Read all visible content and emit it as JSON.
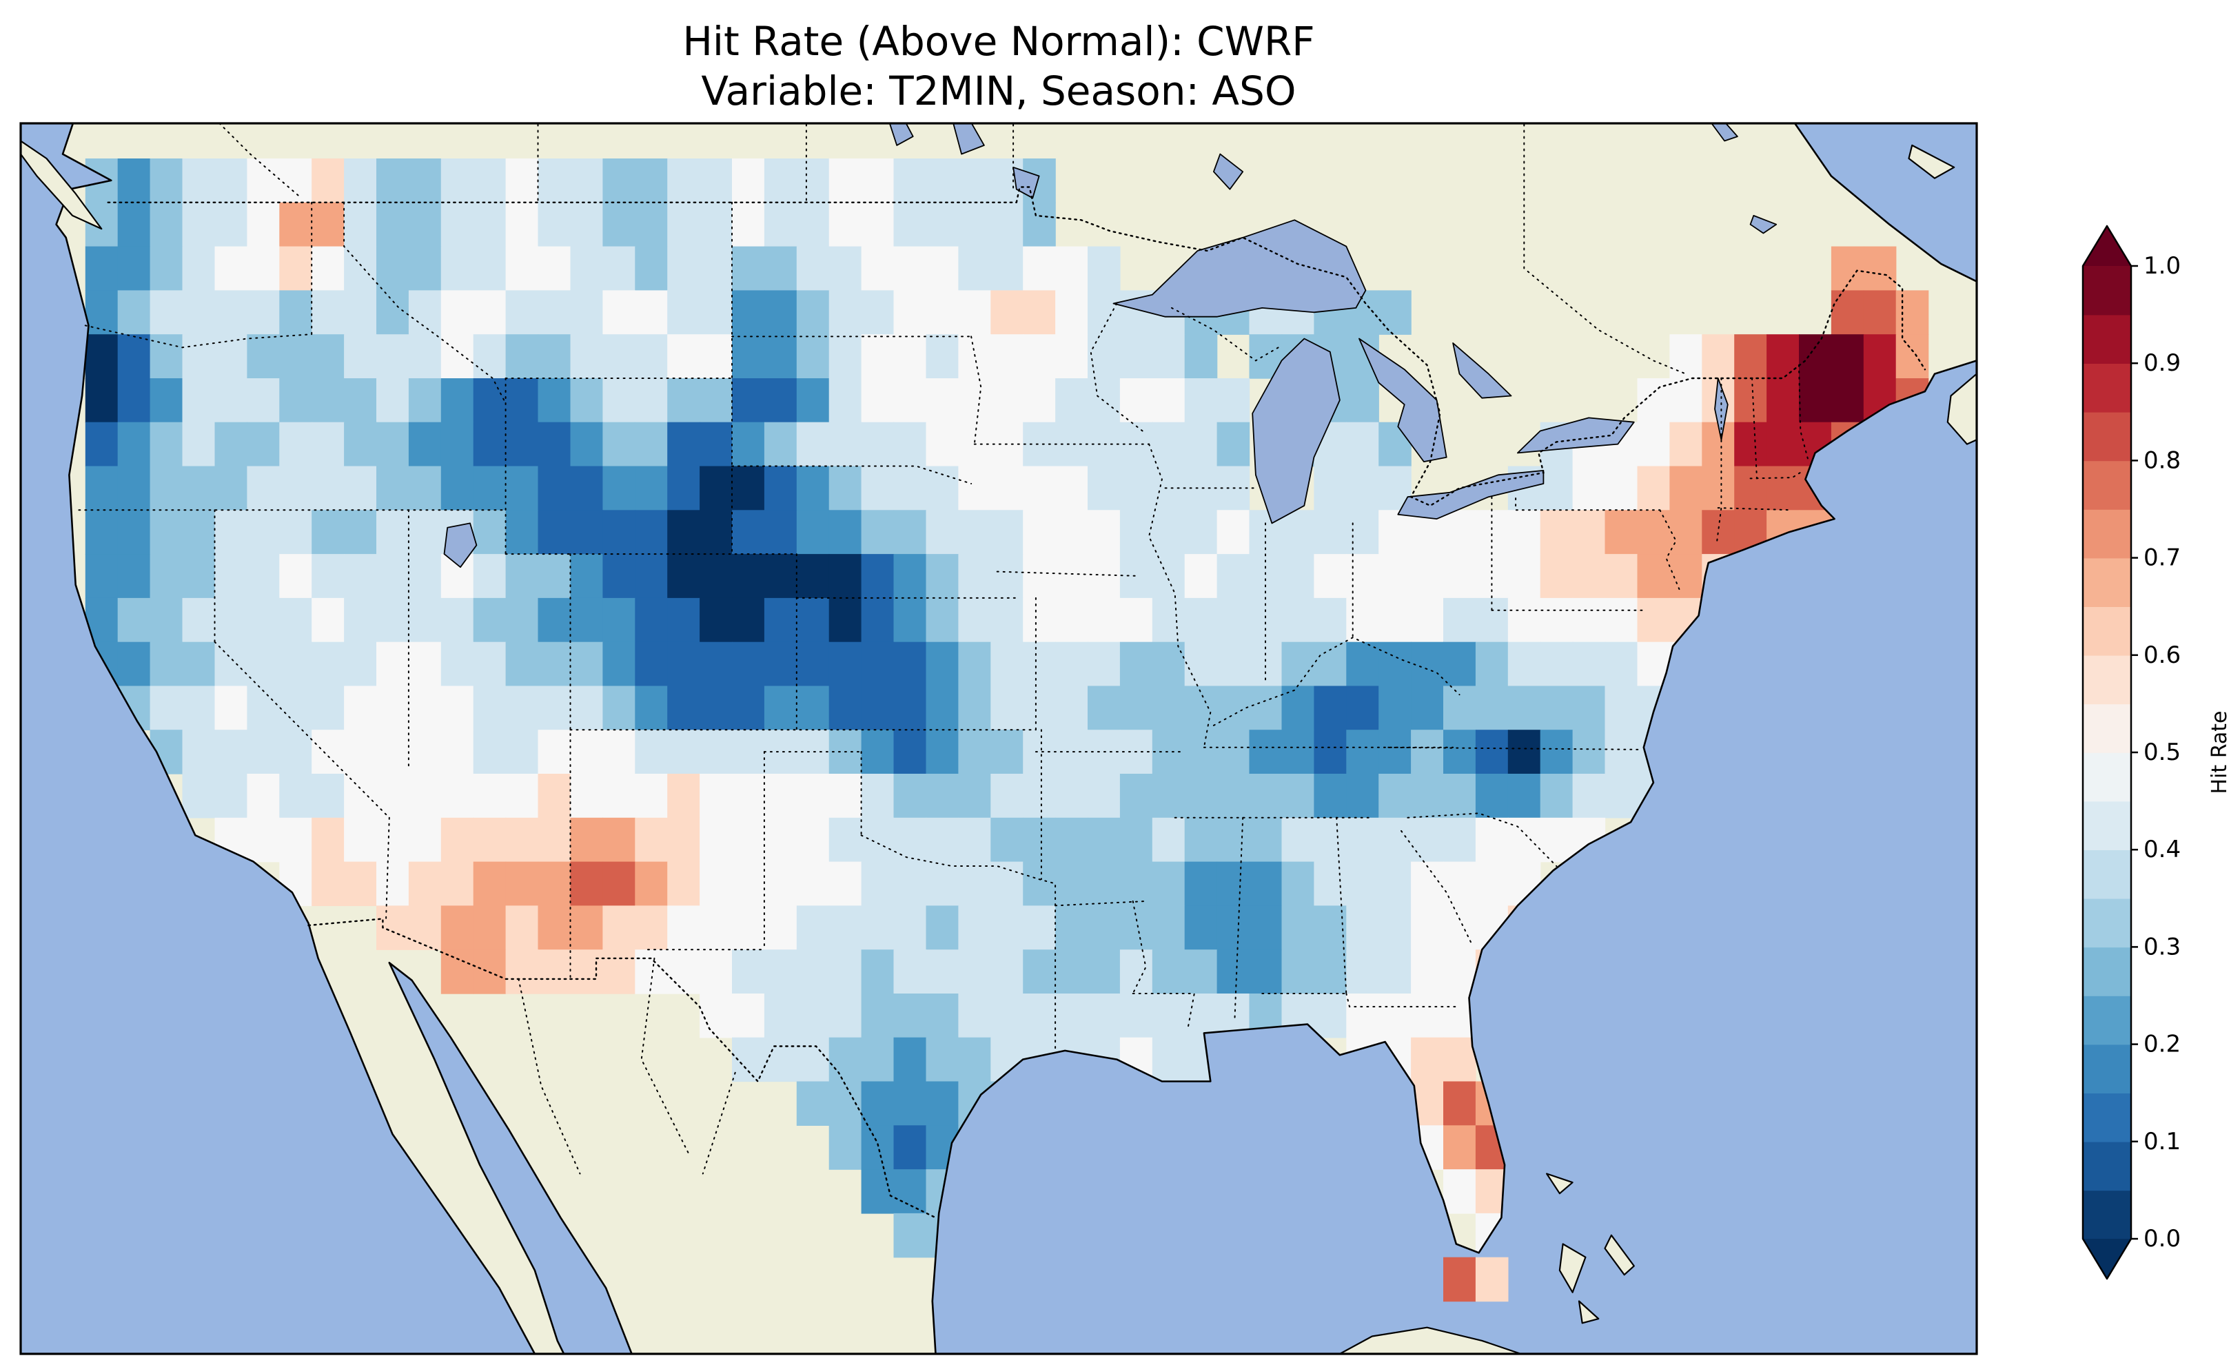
{
  "title": {
    "line1": "Hit Rate (Above Normal): CWRF",
    "line2": "Variable: T2MIN, Season: ASO"
  },
  "chart_data": {
    "type": "heatmap",
    "title": "Hit Rate (Above Normal): CWRF",
    "subtitle": "Variable: T2MIN, Season: ASO",
    "metric": "Hit Rate (Above Normal)",
    "model": "CWRF",
    "variable": "T2MIN",
    "season": "ASO",
    "colorbar": {
      "label": "Hit Rate",
      "min": 0.0,
      "max": 1.0,
      "extend": "both",
      "tick_labels": [
        "0.0",
        "0.1",
        "0.2",
        "0.3",
        "0.4",
        "0.5",
        "0.6",
        "0.7",
        "0.8",
        "0.9",
        "1.0"
      ],
      "bucket_values": [
        0.0,
        0.1,
        0.2,
        0.3,
        0.4,
        0.5,
        0.6,
        0.7,
        0.8,
        0.9,
        1.0
      ],
      "palette": [
        "#053061",
        "#2166ac",
        "#4393c3",
        "#92c5de",
        "#d1e5f0",
        "#f7f7f7",
        "#fddbc7",
        "#f4a582",
        "#d6604d",
        "#b2182b",
        "#67001f"
      ]
    },
    "map": {
      "ocean_color": "#98b6e2",
      "land_color": "#efefdb",
      "lake_color": "#98b0da"
    },
    "extent": {
      "lon": [
        -126,
        -65.5
      ],
      "lat": [
        22.8,
        50.8
      ]
    },
    "grid": {
      "lon_min": -125,
      "lat_max": 50,
      "cell_deg": 1,
      "cols": 59,
      "rows_count": 26,
      "no_data_char": ".",
      "value_encoding": "char '0'-'9' = hit rate 0.0-0.9, 'A' = 1.0, '.' = no data; each row is a list of segments joined left-to-right starting at column 0 (lon -125), rows run north (lat 50) to south (lat 24)",
      "rows": [
        [
          ".",
          "32344556",
          "433445443344",
          "5445544",
          "443"
        ],
        [
          ".",
          "32344577",
          "433445443344",
          "5445544",
          "443"
        ],
        [
          ".",
          "2234556",
          "54",
          "33445544344",
          "3344555",
          "44554",
          "......................",
          "77"
        ],
        [
          ".",
          "2344443",
          "443",
          "4554445544",
          "2234455",
          "56654",
          "44",
          "3344333",
          ".............",
          "887"
        ],
        [
          ".",
          "0134433",
          "344",
          "4543344455",
          "2234554",
          "55554",
          "443",
          ".",
          "3333",
          ".........",
          "5689AA97"
        ],
        [
          ".",
          "0124443",
          "334321",
          "1234433",
          "1124555",
          "55544",
          "5544",
          ".",
          "433",
          "........",
          "55689AA98"
        ],
        [
          ".",
          "1234334",
          "433221",
          "1123311",
          "2344445",
          "55444",
          "4443",
          ".",
          "3443",
          "....",
          "45556799988"
        ],
        [
          ".",
          "2233344",
          "443322",
          "2112210",
          "0123444",
          "55554",
          "4444",
          "..",
          "444",
          "...",
          "4455677",
          "888"
        ],
        [
          ".",
          "2233",
          "444334",
          "443",
          "2111100",
          "11223344",
          "455544",
          "454",
          "44",
          "455",
          "555667",
          "778",
          "877"
        ],
        [
          ".",
          "22334",
          "45444",
          "45433",
          "2110000",
          "0012344",
          "55544",
          "544",
          "455",
          "555",
          "556667",
          "76"
        ],
        [
          ".",
          "23344",
          "44544",
          "44332",
          "2211001",
          "10123445",
          "55544",
          "44",
          "445",
          "55445",
          "55566"
        ],
        [
          ".",
          "223344",
          "4445",
          "54433",
          "3211111",
          "11112344",
          "44334",
          "443",
          "32222",
          "344",
          "4455"
        ],
        [
          ".",
          "334454",
          "4455",
          "55444",
          "4321112",
          "21112344",
          "43333",
          "3321122",
          "3333344"
        ],
        [
          "...",
          "34444",
          "555",
          "55445",
          "5544444",
          "43212334",
          "44433",
          "3221223",
          "2102344"
        ],
        [
          "....",
          "4454455",
          "55556",
          "5556555",
          "55433344",
          "44333",
          "3332233",
          "3223444"
        ],
        [
          ".....",
          "555655",
          "56666",
          "7766555",
          "54444433",
          "33343",
          "3344",
          "444",
          "45555"
        ],
        [
          ".......",
          "5665",
          "66777",
          "8876555",
          "554444",
          "433333",
          "22",
          "23",
          "44455",
          "55"
        ],
        [
          "..........",
          "667767",
          "7665555",
          "44443444",
          "3333",
          "22",
          "23",
          "34455",
          "56"
        ],
        [
          "............",
          "7766",
          "665",
          "554444344443",
          "33433",
          "22",
          "33",
          "44556"
        ],
        [
          "....................",
          "554443334444",
          "44444",
          "3",
          "4455555"
        ],
        [
          ".....................",
          "44433233444",
          "45444",
          "...",
          "5566"
        ],
        [
          ".......................",
          "3322233",
          "............",
          "687"
        ],
        [
          "........................",
          "32123",
          ".............",
          "578"
        ],
        [
          ".........................",
          "223",
          "...............",
          "565"
        ],
        [
          "..........................",
          "33",
          "................",
          "55"
        ],
        [
          "...........................................",
          "86"
        ]
      ]
    }
  }
}
